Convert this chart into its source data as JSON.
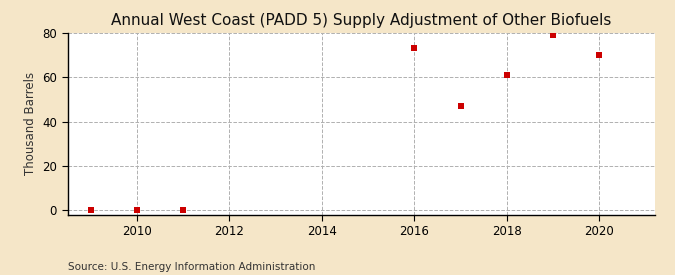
{
  "title": "Annual West Coast (PADD 5) Supply Adjustment of Other Biofuels",
  "ylabel": "Thousand Barrels",
  "source": "Source: U.S. Energy Information Administration",
  "background_color": "#f5e6c8",
  "plot_background_color": "#ffffff",
  "marker_color": "#cc0000",
  "grid_color": "#b0b0b0",
  "spine_color": "#000000",
  "xlim": [
    2008.5,
    2021.2
  ],
  "ylim": [
    -2,
    80
  ],
  "yticks": [
    0,
    20,
    40,
    60,
    80
  ],
  "xticks": [
    2010,
    2012,
    2014,
    2016,
    2018,
    2020
  ],
  "x_data": [
    2009,
    2010,
    2011,
    2016,
    2017,
    2018,
    2019,
    2020
  ],
  "y_data": [
    0,
    0,
    0,
    73,
    47,
    61,
    79,
    70
  ],
  "marker_size": 25,
  "title_fontsize": 11,
  "label_fontsize": 8.5,
  "tick_fontsize": 8.5,
  "source_fontsize": 7.5
}
